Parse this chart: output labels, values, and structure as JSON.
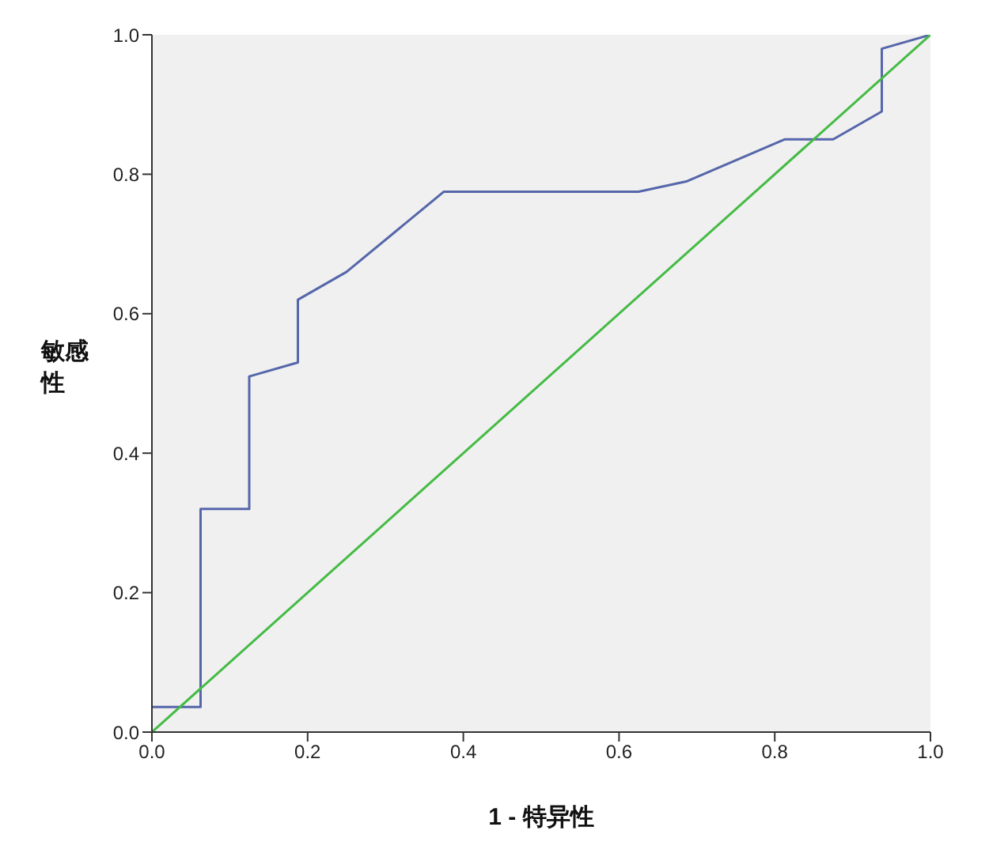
{
  "chart_data": {
    "type": "line",
    "xlabel": "1 - 特异性",
    "ylabel": "敏感性",
    "series": [
      {
        "color": "#5566aa",
        "x": [
          0,
          0.0625,
          0.0625,
          0.125,
          0.125,
          0.1875,
          0.1875,
          0.25,
          0.375,
          0.625,
          0.6875,
          0.8125,
          0.875,
          0.9375,
          0.9375,
          1
        ],
        "values": [
          0.036,
          0.036,
          0.32,
          0.32,
          0.51,
          0.53,
          0.62,
          0.66,
          0.775,
          0.775,
          0.79,
          0.85,
          0.85,
          0.89,
          0.98,
          1
        ]
      },
      {
        "color": "#44bb44",
        "x": [
          0,
          1
        ],
        "values": [
          0,
          1
        ]
      }
    ],
    "xlim": [
      0,
      1
    ],
    "ylim": [
      0,
      1
    ],
    "xticks": [
      {
        "value": 0,
        "label": "0.0"
      },
      {
        "value": 0.2,
        "label": "0.2"
      },
      {
        "value": 0.4,
        "label": "0.4"
      },
      {
        "value": 0.6,
        "label": "0.6"
      },
      {
        "value": 0.8,
        "label": "0.8"
      },
      {
        "value": 1,
        "label": "1.0"
      }
    ],
    "yticks": [
      {
        "value": 0,
        "label": "0.0"
      },
      {
        "value": 0.2,
        "label": "0.2"
      },
      {
        "value": 0.4,
        "label": "0.4"
      },
      {
        "value": 0.6,
        "label": "0.6"
      },
      {
        "value": 0.8,
        "label": "0.8"
      },
      {
        "value": 1,
        "label": "1.0"
      }
    ],
    "grid": false,
    "legend": false,
    "marker": "none",
    "line_style": "solid"
  }
}
